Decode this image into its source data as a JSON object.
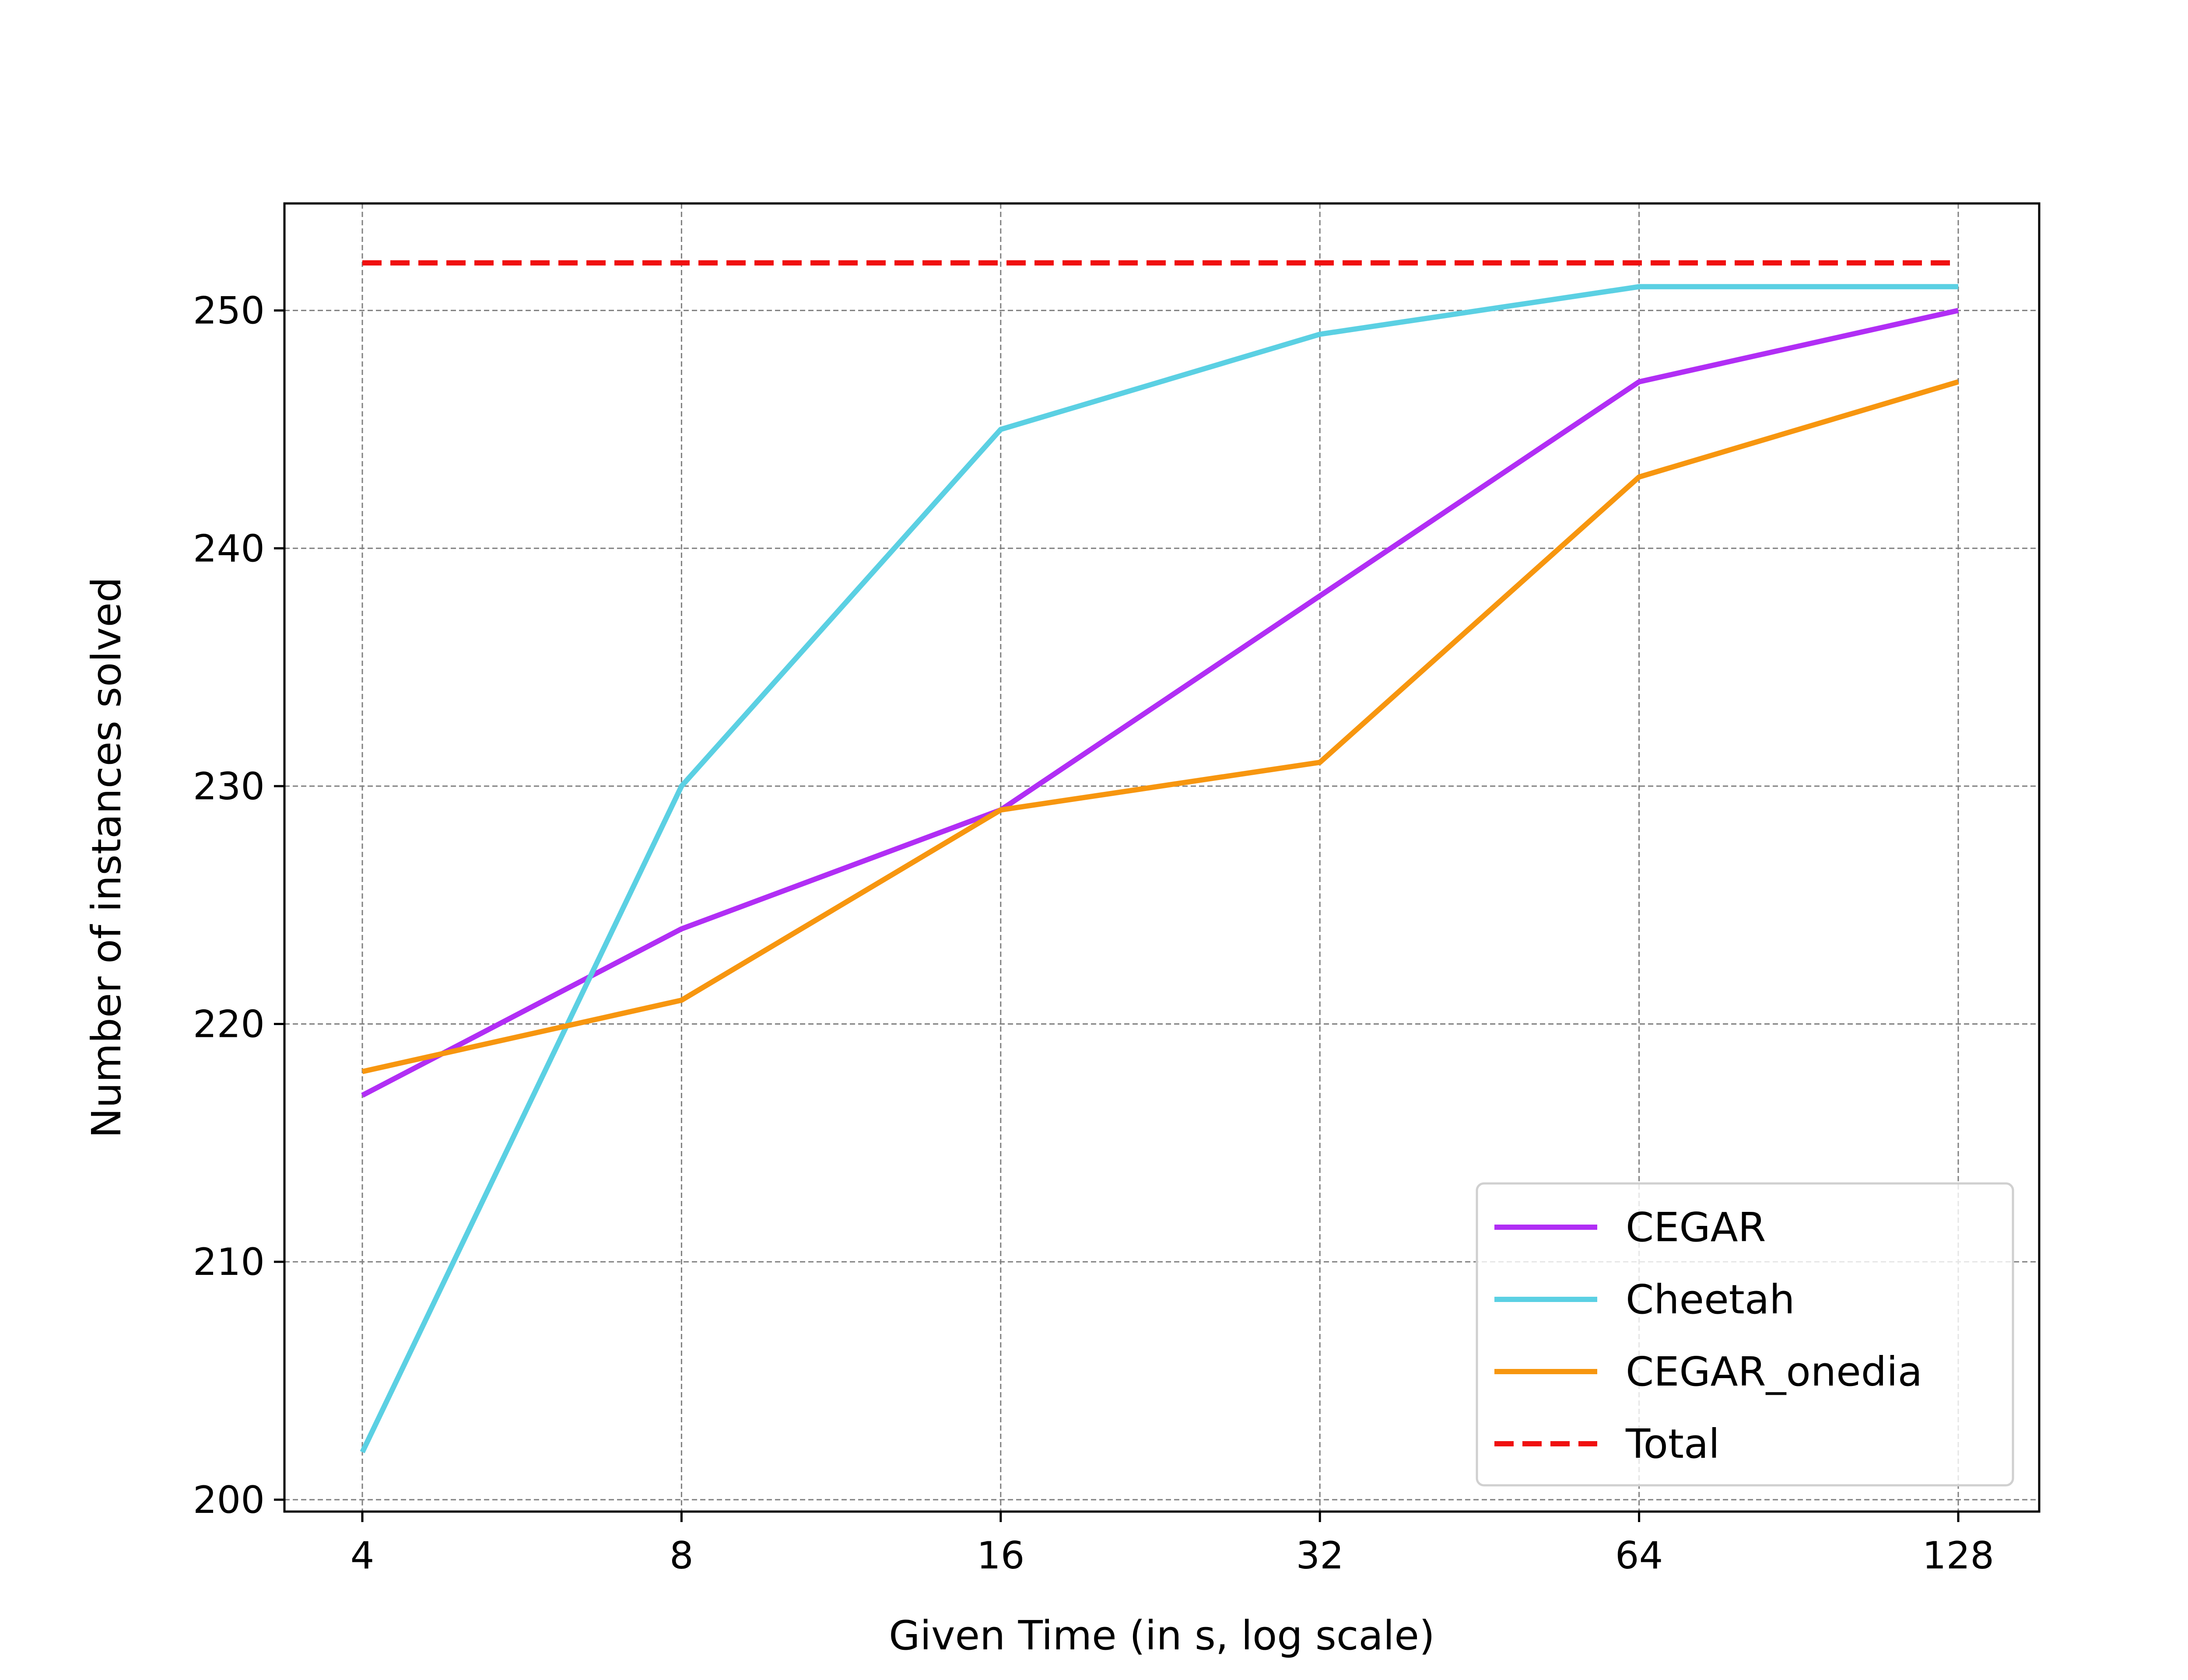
{
  "chart_data": {
    "type": "line",
    "title": "",
    "xlabel": "Given Time (in s, log scale)",
    "ylabel": "Number of instances solved",
    "x_scale": "log2",
    "x": [
      4,
      8,
      16,
      32,
      64,
      128
    ],
    "x_tick_labels": [
      "4",
      "8",
      "16",
      "32",
      "64",
      "128"
    ],
    "y_ticks": [
      200,
      210,
      220,
      230,
      240,
      250
    ],
    "y_tick_labels": [
      "200",
      "210",
      "220",
      "230",
      "240",
      "250"
    ],
    "ylim": [
      199.5,
      254.5
    ],
    "grid": true,
    "legend_position": "lower-right",
    "series": [
      {
        "name": "CEGAR",
        "color": "#b12ef5",
        "style": "solid",
        "values": [
          217,
          224,
          229,
          238,
          247,
          250
        ]
      },
      {
        "name": "Cheetah",
        "color": "#5bd0e3",
        "style": "solid",
        "values": [
          202,
          230,
          245,
          249,
          251,
          251
        ]
      },
      {
        "name": "CEGAR_onedia",
        "color": "#f7960f",
        "style": "solid",
        "values": [
          218,
          221,
          229,
          231,
          243,
          247
        ]
      },
      {
        "name": "Total",
        "color": "#f01010",
        "style": "dashed",
        "values": [
          252,
          252,
          252,
          252,
          252,
          252
        ]
      }
    ]
  }
}
